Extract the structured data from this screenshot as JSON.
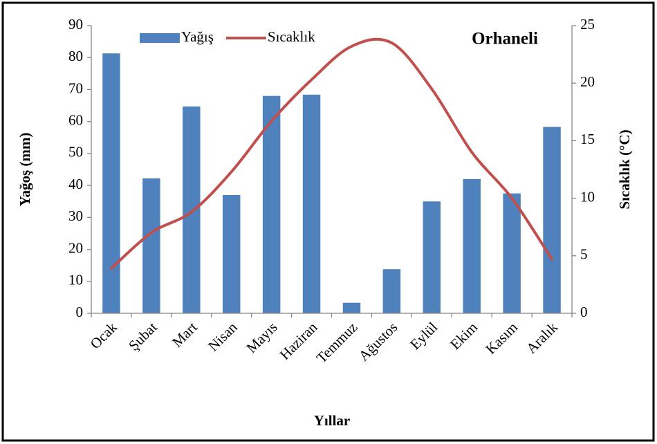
{
  "chart_data": {
    "type": "bar_line",
    "annotation": "Orhaneli",
    "x_label": "Yıllar",
    "y_label": "Yağoş (mm)",
    "y2_label": "Sıcaklık (°C)",
    "categories": [
      "Ocak",
      "Şubat",
      "Mart",
      "Nisan",
      "Mayıs",
      "Haziran",
      "Temmuz",
      "Ağustos",
      "Eylül",
      "Ekim",
      "Kasım",
      "Aralık"
    ],
    "series": [
      {
        "name": "Yağış",
        "type": "bar",
        "color": "#4f81bd",
        "values": [
          81.3,
          42.2,
          64.7,
          37,
          68,
          68.4,
          3.3,
          13.8,
          35,
          42,
          37.5,
          58.3
        ]
      },
      {
        "name": "Sıcaklık",
        "type": "line",
        "axis": "y2",
        "color": "#c0504d",
        "values": [
          3.9,
          7.0,
          8.8,
          12.3,
          16.7,
          20.3,
          23.2,
          23.5,
          19.5,
          14,
          10,
          4.7
        ]
      }
    ],
    "ylim": [
      0,
      90
    ],
    "yticks": [
      0,
      10,
      20,
      30,
      40,
      50,
      60,
      70,
      80,
      90
    ],
    "y2lim": [
      0,
      25
    ],
    "y2ticks": [
      0,
      5,
      10,
      15,
      20,
      25
    ],
    "legend": "top-left",
    "grid": false
  }
}
